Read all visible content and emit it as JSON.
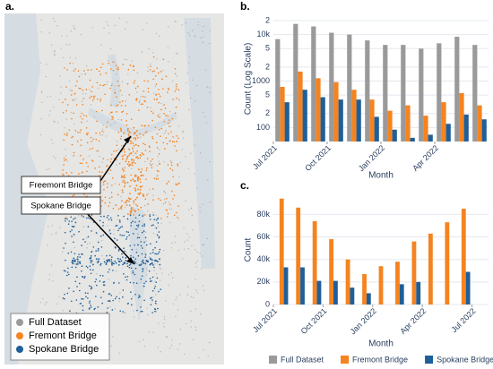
{
  "map": {
    "label": "a.",
    "callouts": [
      "Freemont Bridge",
      "Spokane Bridge"
    ],
    "legend": [
      {
        "name": "Full Dataset",
        "color": "#9a9a9a"
      },
      {
        "name": "Fremont Bridge",
        "color": "#f5831f"
      },
      {
        "name": "Spokane Bridge",
        "color": "#1f5f99"
      }
    ]
  },
  "chart_data": [
    {
      "type": "bar",
      "panel_label": "b.",
      "y_label": "Count (Log Scale)",
      "x_label": "Month",
      "log": true,
      "grid": true,
      "categories": [
        "Jul 2021",
        null,
        null,
        "Oct 2021",
        null,
        null,
        "Jan 2022",
        null,
        null,
        "Apr 2022",
        null,
        null
      ],
      "ylim": [
        50,
        25000
      ],
      "yticks": [
        100,
        {
          "value": 200,
          "label": "2"
        },
        {
          "value": 500,
          "label": "5"
        },
        1000,
        {
          "value": 2000,
          "label": "2"
        },
        {
          "value": 5000,
          "label": "5"
        },
        {
          "value": 10000,
          "label": "10k"
        },
        {
          "value": 20000,
          "label": "2"
        }
      ],
      "series": [
        {
          "color": "#9a9a9a",
          "values": [
            8000,
            17000,
            15000,
            11000,
            10000,
            7500,
            6000,
            6000,
            5000,
            6500,
            9000,
            6000
          ]
        },
        {
          "color": "#f5831f",
          "values": [
            750,
            1600,
            1150,
            950,
            650,
            400,
            230,
            300,
            180,
            350,
            550,
            300
          ]
        },
        {
          "color": "#1f5f99",
          "values": [
            350,
            650,
            450,
            400,
            400,
            170,
            90,
            60,
            70,
            120,
            190,
            150
          ]
        }
      ]
    },
    {
      "type": "bar",
      "panel_label": "c.",
      "y_label": "Count",
      "x_label": "Month",
      "log": false,
      "grid": true,
      "categories": [
        "Jul 2021",
        null,
        null,
        "Oct 2021",
        null,
        null,
        "Jan 2022",
        null,
        null,
        "Apr 2022",
        null,
        null,
        "Jul 2022"
      ],
      "ylim": [
        0,
        97000
      ],
      "yticks": [
        0,
        {
          "value": 20000,
          "label": "20k"
        },
        {
          "value": 40000,
          "label": "40k"
        },
        {
          "value": 60000,
          "label": "60k"
        },
        {
          "value": 80000,
          "label": "80k"
        }
      ],
      "series": [
        {
          "name": "Full Dataset",
          "color": "#9a9a9a",
          "values": [
            null,
            null,
            null,
            null,
            null,
            null,
            null,
            null,
            null,
            null,
            null,
            null,
            null
          ]
        },
        {
          "name": "Fremont Bridge",
          "color": "#f5831f",
          "values": [
            94000,
            86000,
            74000,
            58000,
            40000,
            27000,
            34000,
            38000,
            56000,
            63000,
            73000,
            85000,
            null
          ]
        },
        {
          "name": "Spokane Bridge",
          "color": "#1f5f99",
          "values": [
            33000,
            33000,
            21000,
            21000,
            15000,
            10000,
            null,
            18000,
            20000,
            null,
            null,
            29000,
            null
          ]
        }
      ]
    }
  ]
}
